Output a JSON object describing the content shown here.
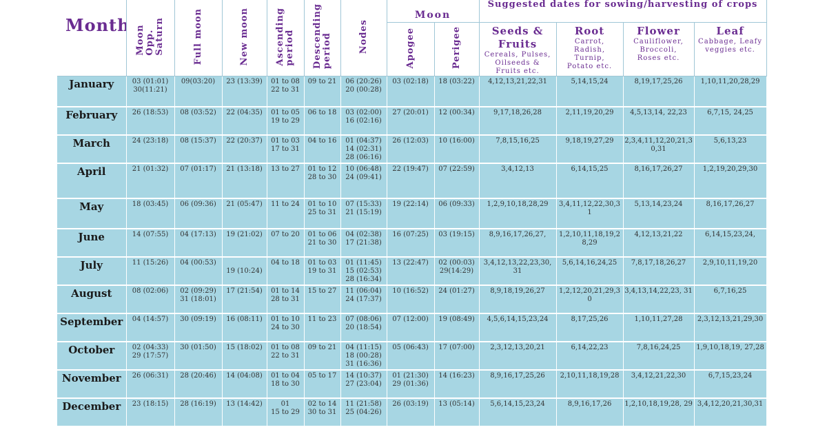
{
  "header": {
    "month": "Month",
    "moon_group": "Moon",
    "crops_group": "Suggested dates for sowing/harvesting of crops",
    "moon_opp_saturn": "Moon\nOpp.\nSaturn",
    "full_moon": "Full moon",
    "new_moon": "New moon",
    "ascending": "Ascending\nperiod",
    "descending": "Descending\nperiod",
    "nodes": "Nodes",
    "apogee": "Apogee",
    "perigee": "Perigee",
    "seeds_title": "Seeds &\nFruits",
    "seeds_sub": "Cereals, Pulses,\nOilseeds &\nFruits etc.",
    "root_title": "Root",
    "root_sub": "Carrot,\nRadish,\nTurnip,\nPotato etc.",
    "flower_title": "Flower",
    "flower_sub": "Cauliflower,\nBroccoli,\nRoses etc.",
    "leaf_title": "Leaf",
    "leaf_sub": "Cabbage, Leafy\nveggies etc."
  },
  "rows": [
    {
      "month": "January",
      "saturn": "03 (01:01)\n30(11:21)",
      "full": "09(03:20)",
      "new": "23 (13:39)",
      "asc": "01 to 08\n22 to 31",
      "desc": "09 to 21",
      "nodes": "06 (20:26)\n20 (00:28)",
      "apogee": "03 (02:18)",
      "perigee": "18 (03:22)",
      "seeds": "4,12,13,21,22,31",
      "root": "5,14,15,24",
      "flower": "8,19,17,25,26",
      "leaf": "1,10,11,20,28,29"
    },
    {
      "month": "February",
      "saturn": "26 (18:53)",
      "full": "08 (03:52)",
      "new": "22 (04:35)",
      "asc": "01 to 05\n19 to 29",
      "desc": "06 to 18",
      "nodes": "03 (02:00)\n16 (02:16)",
      "apogee": "27 (20:01)",
      "perigee": "12 (00:34)",
      "seeds": "9,17,18,26,28",
      "root": "2,11,19,20,29",
      "flower": "4,5,13,14, 22,23",
      "leaf": "6,7,15, 24,25"
    },
    {
      "month": "March",
      "saturn": "24 (23:18)",
      "full": "08 (15:37)",
      "new": "22 (20:37)",
      "asc": "01 to 03\n17 to 31",
      "desc": "04 to 16",
      "nodes": "01 (04:37)\n14 (02:31)\n28 (06:16)",
      "apogee": "26 (12:03)",
      "perigee": "10 (16:00)",
      "seeds": "7,8,15,16,25",
      "root": "9,18,19,27,29",
      "flower": "2,3,4,11,12,20,21,3\n0,31",
      "leaf": "5,6,13,23"
    },
    {
      "month": "April",
      "saturn": "21 (01:32)",
      "full": "07 (01:17)",
      "new": "21 (13:18)",
      "asc": "13 to 27",
      "desc": "01 to 12\n28 to 30",
      "nodes": "10 (06:48)\n24 (09:41)",
      "apogee": "22 (19:47)",
      "perigee": "07 (22:59)",
      "seeds": "3,4,12,13",
      "root": "6,14,15,25",
      "flower": "8,16,17,26,27",
      "leaf": "1,2,19,20,29,30"
    },
    {
      "month": "May",
      "saturn": "18 (03:45)",
      "full": "06 (09:36)",
      "new": "21 (05:47)",
      "asc": "11 to 24",
      "desc": "01 to 10\n25 to 31",
      "nodes": "07 (15:33)\n21 (15:19)",
      "apogee": "19 (22:14)",
      "perigee": "06 (09:33)",
      "seeds": "1,2,9,10,18,28,29",
      "root": "3,4,11,12,22,30,3\n1",
      "flower": "5,13,14,23,24",
      "leaf": "8,16,17,26,27"
    },
    {
      "month": "June",
      "saturn": "14 (07:55)",
      "full": "04 (17:13)",
      "new": "19 (21:02)",
      "asc": "07 to 20",
      "desc": "01 to 06\n21 to 30",
      "nodes": "04 (02:38)\n17 (21:38)",
      "apogee": "16 (07:25)",
      "perigee": "03 (19:15)",
      "seeds": "8,9,16,17,26,27,",
      "root": "1,2,10,11,18,19,2\n8,29",
      "flower": "4,12,13,21,22",
      "leaf": "6,14,15,23,24,"
    },
    {
      "month": "July",
      "saturn": "11 (15:26)",
      "full": "04 (00:53)",
      "new": "19 (10:24)",
      "asc": "04 to 18",
      "desc": "01 to 03\n19 to 31",
      "nodes": "01 (11:45)\n15 (02:53)\n28 (16:34)",
      "apogee": "13 (22:47)",
      "perigee": "02 (00:03)\n29(14:29)",
      "seeds": "3,4,12,13,22,23,30,\n31",
      "root": "5,6,14,16,24,25",
      "flower": "7,8,17,18,26,27",
      "leaf": "2,9,10,11,19,20"
    },
    {
      "month": "August",
      "saturn": "08 (02:06)",
      "full": "02 (09:29)\n31 (18:01)",
      "new": "17 (21:54)",
      "asc": "01 to 14\n28 to 31",
      "desc": "15 to 27",
      "nodes": "11 (06:04)\n24 (17:37)",
      "apogee": "10 (16:52)",
      "perigee": "24 (01:27)",
      "seeds": "8,9,18,19,26,27",
      "root": "1,2,12,20,21,29,3\n0",
      "flower": "3,4,13,14,22,23, 31",
      "leaf": "6,7,16,25"
    },
    {
      "month": "September",
      "saturn": "04 (14:57)",
      "full": "30 (09:19)",
      "new": "16 (08:11)",
      "asc": "01 to 10\n24 to 30",
      "desc": "11 to 23",
      "nodes": "07 (08:06)\n20 (18:54)",
      "apogee": "07 (12:00)",
      "perigee": "19 (08:49)",
      "seeds": "4,5,6,14,15,23,24",
      "root": "8,17,25,26",
      "flower": "1,10,11,27,28",
      "leaf": "2,3,12,13,21,29,30"
    },
    {
      "month": "October",
      "saturn": "02 (04:33)\n29 (17:57)",
      "full": "30 (01:50)",
      "new": "15 (18:02)",
      "asc": "01 to 08\n22 to 31",
      "desc": "09 to 21",
      "nodes": "04 (11:15)\n18 (00:28)\n31 (16:36)",
      "apogee": "05 (06:43)",
      "perigee": "17 (07:00)",
      "seeds": "2,3,12,13,20,21",
      "root": "6,14,22,23",
      "flower": "7,8,16,24,25",
      "leaf": "1,9,10,18,19, 27,28"
    },
    {
      "month": "November",
      "saturn": "26 (06:31)",
      "full": "28 (20:46)",
      "new": "14 (04:08)",
      "asc": "01 to 04\n18 to 30",
      "desc": "05 to 17",
      "nodes": "14 (10:37)\n27 (23:04)",
      "apogee": "01 (21:30)\n29 (01:36)",
      "perigee": "14 (16:23)",
      "seeds": "8,9,16,17,25,26",
      "root": "2,10,11,18,19,28",
      "flower": "3,4,12,21,22,30",
      "leaf": "6,7,15,23,24"
    },
    {
      "month": "December",
      "saturn": "23 (18:15)",
      "full": "28 (16:19)",
      "new": "13 (14:42)",
      "asc": "01\n15 to 29",
      "desc": "02 to 14\n30 to 31",
      "nodes": "11 (21:58)\n25 (04:26)",
      "apogee": "26 (03:19)",
      "perigee": "13 (05:14)",
      "seeds": "5,6,14,15,23,24",
      "root": "8,9,16,17,26",
      "flower": "1,2,10,18,19,28, 29",
      "leaf": "3,4,12,20,21,30,31"
    }
  ]
}
